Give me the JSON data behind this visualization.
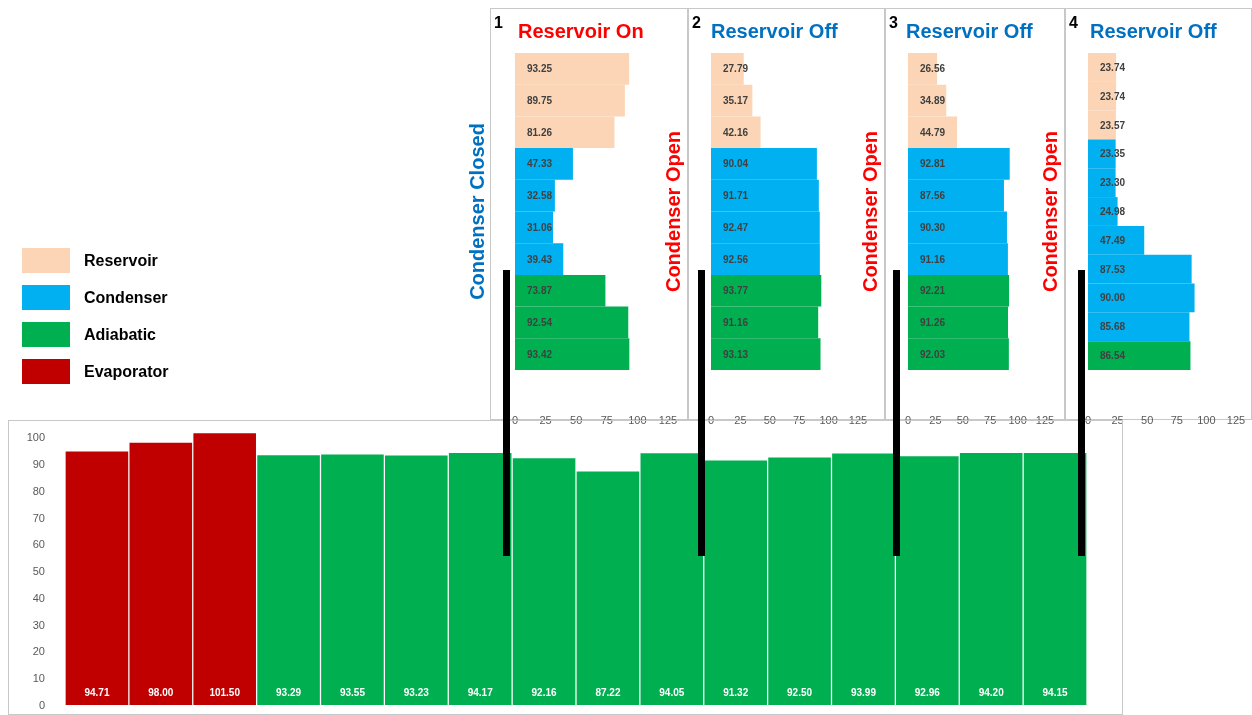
{
  "chart_data": [
    {
      "type": "bar",
      "orientation": "horizontal",
      "stacked": true,
      "legend": "left",
      "title": "Reservoir On",
      "ylabel": "Condenser Closed",
      "annotations": [
        "1"
      ],
      "categories": [
        null,
        null,
        null,
        null,
        null,
        null,
        null,
        null,
        null,
        null
      ],
      "xlim": [
        0,
        125
      ],
      "xticks": [
        0,
        25,
        50,
        75,
        100,
        125
      ],
      "series": [
        {
          "name": "Reservoir",
          "color": "#fbd5b5",
          "values": [
            93.25,
            89.75,
            81.26,
            null,
            null,
            null,
            null,
            null,
            null,
            null
          ],
          "value_labels": [
            "93.25",
            "89.75",
            "81.26",
            null,
            null,
            null,
            null,
            null,
            null,
            null
          ]
        },
        {
          "name": "Condenser",
          "color": "#00b0f0",
          "values": [
            null,
            null,
            null,
            47.33,
            32.58,
            31.06,
            39.43,
            null,
            null,
            null
          ],
          "value_labels": [
            null,
            null,
            null,
            "47.33",
            "32.58",
            "31.06",
            "39.43",
            null,
            null,
            null
          ]
        },
        {
          "name": "Adiabatic",
          "color": "#00b050",
          "values": [
            null,
            null,
            null,
            null,
            null,
            null,
            null,
            73.87,
            92.54,
            93.42
          ],
          "value_labels": [
            null,
            null,
            null,
            null,
            null,
            null,
            null,
            "73.87",
            "92.54",
            "93.42"
          ]
        }
      ]
    },
    {
      "type": "bar",
      "orientation": "horizontal",
      "stacked": true,
      "title": "Reservoir Off",
      "ylabel": "Condenser Open",
      "annotations": [
        "2"
      ],
      "categories": [
        null,
        null,
        null,
        null,
        null,
        null,
        null,
        null,
        null,
        null
      ],
      "xlim": [
        0,
        125
      ],
      "xticks": [
        0,
        25,
        50,
        75,
        100,
        125
      ],
      "series": [
        {
          "name": "Reservoir",
          "color": "#fbd5b5",
          "values": [
            27.79,
            35.17,
            42.16,
            null,
            null,
            null,
            null,
            null,
            null,
            null
          ],
          "value_labels": [
            "27.79",
            "35.17",
            "42.16",
            null,
            null,
            null,
            null,
            null,
            null,
            null
          ]
        },
        {
          "name": "Condenser",
          "color": "#00b0f0",
          "values": [
            null,
            null,
            null,
            90.04,
            91.71,
            92.47,
            92.56,
            null,
            null,
            null
          ],
          "value_labels": [
            null,
            null,
            null,
            "90.04",
            "91.71",
            "92.47",
            "92.56",
            null,
            null,
            null
          ]
        },
        {
          "name": "Adiabatic",
          "color": "#00b050",
          "values": [
            null,
            null,
            null,
            null,
            null,
            null,
            null,
            93.77,
            91.16,
            93.13
          ],
          "value_labels": [
            null,
            null,
            null,
            null,
            null,
            null,
            null,
            "93.77",
            "91.16",
            "93.13"
          ]
        }
      ]
    },
    {
      "type": "bar",
      "orientation": "horizontal",
      "stacked": true,
      "title": "Reservoir Off",
      "ylabel": "Condenser Open",
      "annotations": [
        "3"
      ],
      "categories": [
        null,
        null,
        null,
        null,
        null,
        null,
        null,
        null,
        null,
        null
      ],
      "xlim": [
        0,
        125
      ],
      "xticks": [
        0,
        25,
        50,
        75,
        100,
        125
      ],
      "series": [
        {
          "name": "Reservoir",
          "color": "#fbd5b5",
          "values": [
            26.56,
            34.89,
            44.79,
            null,
            null,
            null,
            null,
            null,
            null,
            null
          ],
          "value_labels": [
            "26.56",
            "34.89",
            "44.79",
            null,
            null,
            null,
            null,
            null,
            null,
            null
          ]
        },
        {
          "name": "Condenser",
          "color": "#00b0f0",
          "values": [
            null,
            null,
            null,
            92.81,
            87.56,
            90.3,
            91.16,
            null,
            null,
            null
          ],
          "value_labels": [
            null,
            null,
            null,
            "92.81",
            "87.56",
            "90.30",
            "91.16",
            null,
            null,
            null
          ]
        },
        {
          "name": "Adiabatic",
          "color": "#00b050",
          "values": [
            null,
            null,
            null,
            null,
            null,
            null,
            null,
            92.21,
            91.26,
            92.03
          ],
          "value_labels": [
            null,
            null,
            null,
            null,
            null,
            null,
            null,
            "92.21",
            "91.26",
            "92.03"
          ]
        }
      ]
    },
    {
      "type": "bar",
      "orientation": "horizontal",
      "stacked": true,
      "title": "Reservoir Off",
      "ylabel": "Condenser Open",
      "annotations": [
        "4"
      ],
      "categories": [
        null,
        null,
        null,
        null,
        null,
        null,
        null,
        null,
        null,
        null,
        null
      ],
      "xlim": [
        0,
        125
      ],
      "xticks": [
        0,
        25,
        50,
        75,
        100,
        125
      ],
      "series": [
        {
          "name": "Reservoir",
          "color": "#fbd5b5",
          "values": [
            23.74,
            23.74,
            23.57,
            null,
            null,
            null,
            null,
            null,
            null,
            null,
            null
          ],
          "value_labels": [
            "23.74",
            "23.74",
            "23.57",
            null,
            null,
            null,
            null,
            null,
            null,
            null,
            null
          ]
        },
        {
          "name": "Condenser",
          "color": "#00b0f0",
          "values": [
            null,
            null,
            null,
            23.35,
            23.3,
            24.98,
            47.49,
            87.53,
            90.0,
            85.68,
            null
          ],
          "value_labels": [
            null,
            null,
            null,
            "23.35",
            "23.30",
            "24.98",
            "47.49",
            "87.53",
            "90.00",
            "85.68",
            null
          ]
        },
        {
          "name": "Adiabatic",
          "color": "#00b050",
          "values": [
            null,
            null,
            null,
            null,
            null,
            null,
            null,
            null,
            null,
            null,
            86.54
          ],
          "value_labels": [
            null,
            null,
            null,
            null,
            null,
            null,
            null,
            null,
            null,
            null,
            "86.54"
          ]
        }
      ]
    },
    {
      "type": "bar",
      "stacked": true,
      "categories": [
        null,
        null,
        null,
        null,
        null,
        null,
        null,
        null,
        null,
        null,
        null,
        null,
        null,
        null,
        null,
        null
      ],
      "ylim": [
        0,
        102
      ],
      "yticks": [
        0,
        10,
        20,
        30,
        40,
        50,
        60,
        70,
        80,
        90,
        100
      ],
      "series": [
        {
          "name": "Evaporator",
          "color": "#c00000",
          "values": [
            94.71,
            98.0,
            101.5,
            null,
            null,
            null,
            null,
            null,
            null,
            null,
            null,
            null,
            null,
            null,
            null,
            null
          ],
          "value_labels": [
            "94.71",
            "98.00",
            "101.50",
            null,
            null,
            null,
            null,
            null,
            null,
            null,
            null,
            null,
            null,
            null,
            null,
            null
          ]
        },
        {
          "name": "Adiabatic",
          "color": "#00b050",
          "values": [
            null,
            null,
            null,
            93.29,
            93.55,
            93.23,
            94.17,
            92.16,
            87.22,
            94.05,
            91.32,
            92.5,
            93.99,
            92.96,
            94.2,
            94.15
          ],
          "value_labels": [
            null,
            null,
            null,
            "93.29",
            "93.55",
            "93.23",
            "94.17",
            "92.16",
            "87.22",
            "94.05",
            "91.32",
            "92.50",
            "93.99",
            "92.96",
            "94.20",
            "94.15"
          ]
        }
      ]
    }
  ]
}
